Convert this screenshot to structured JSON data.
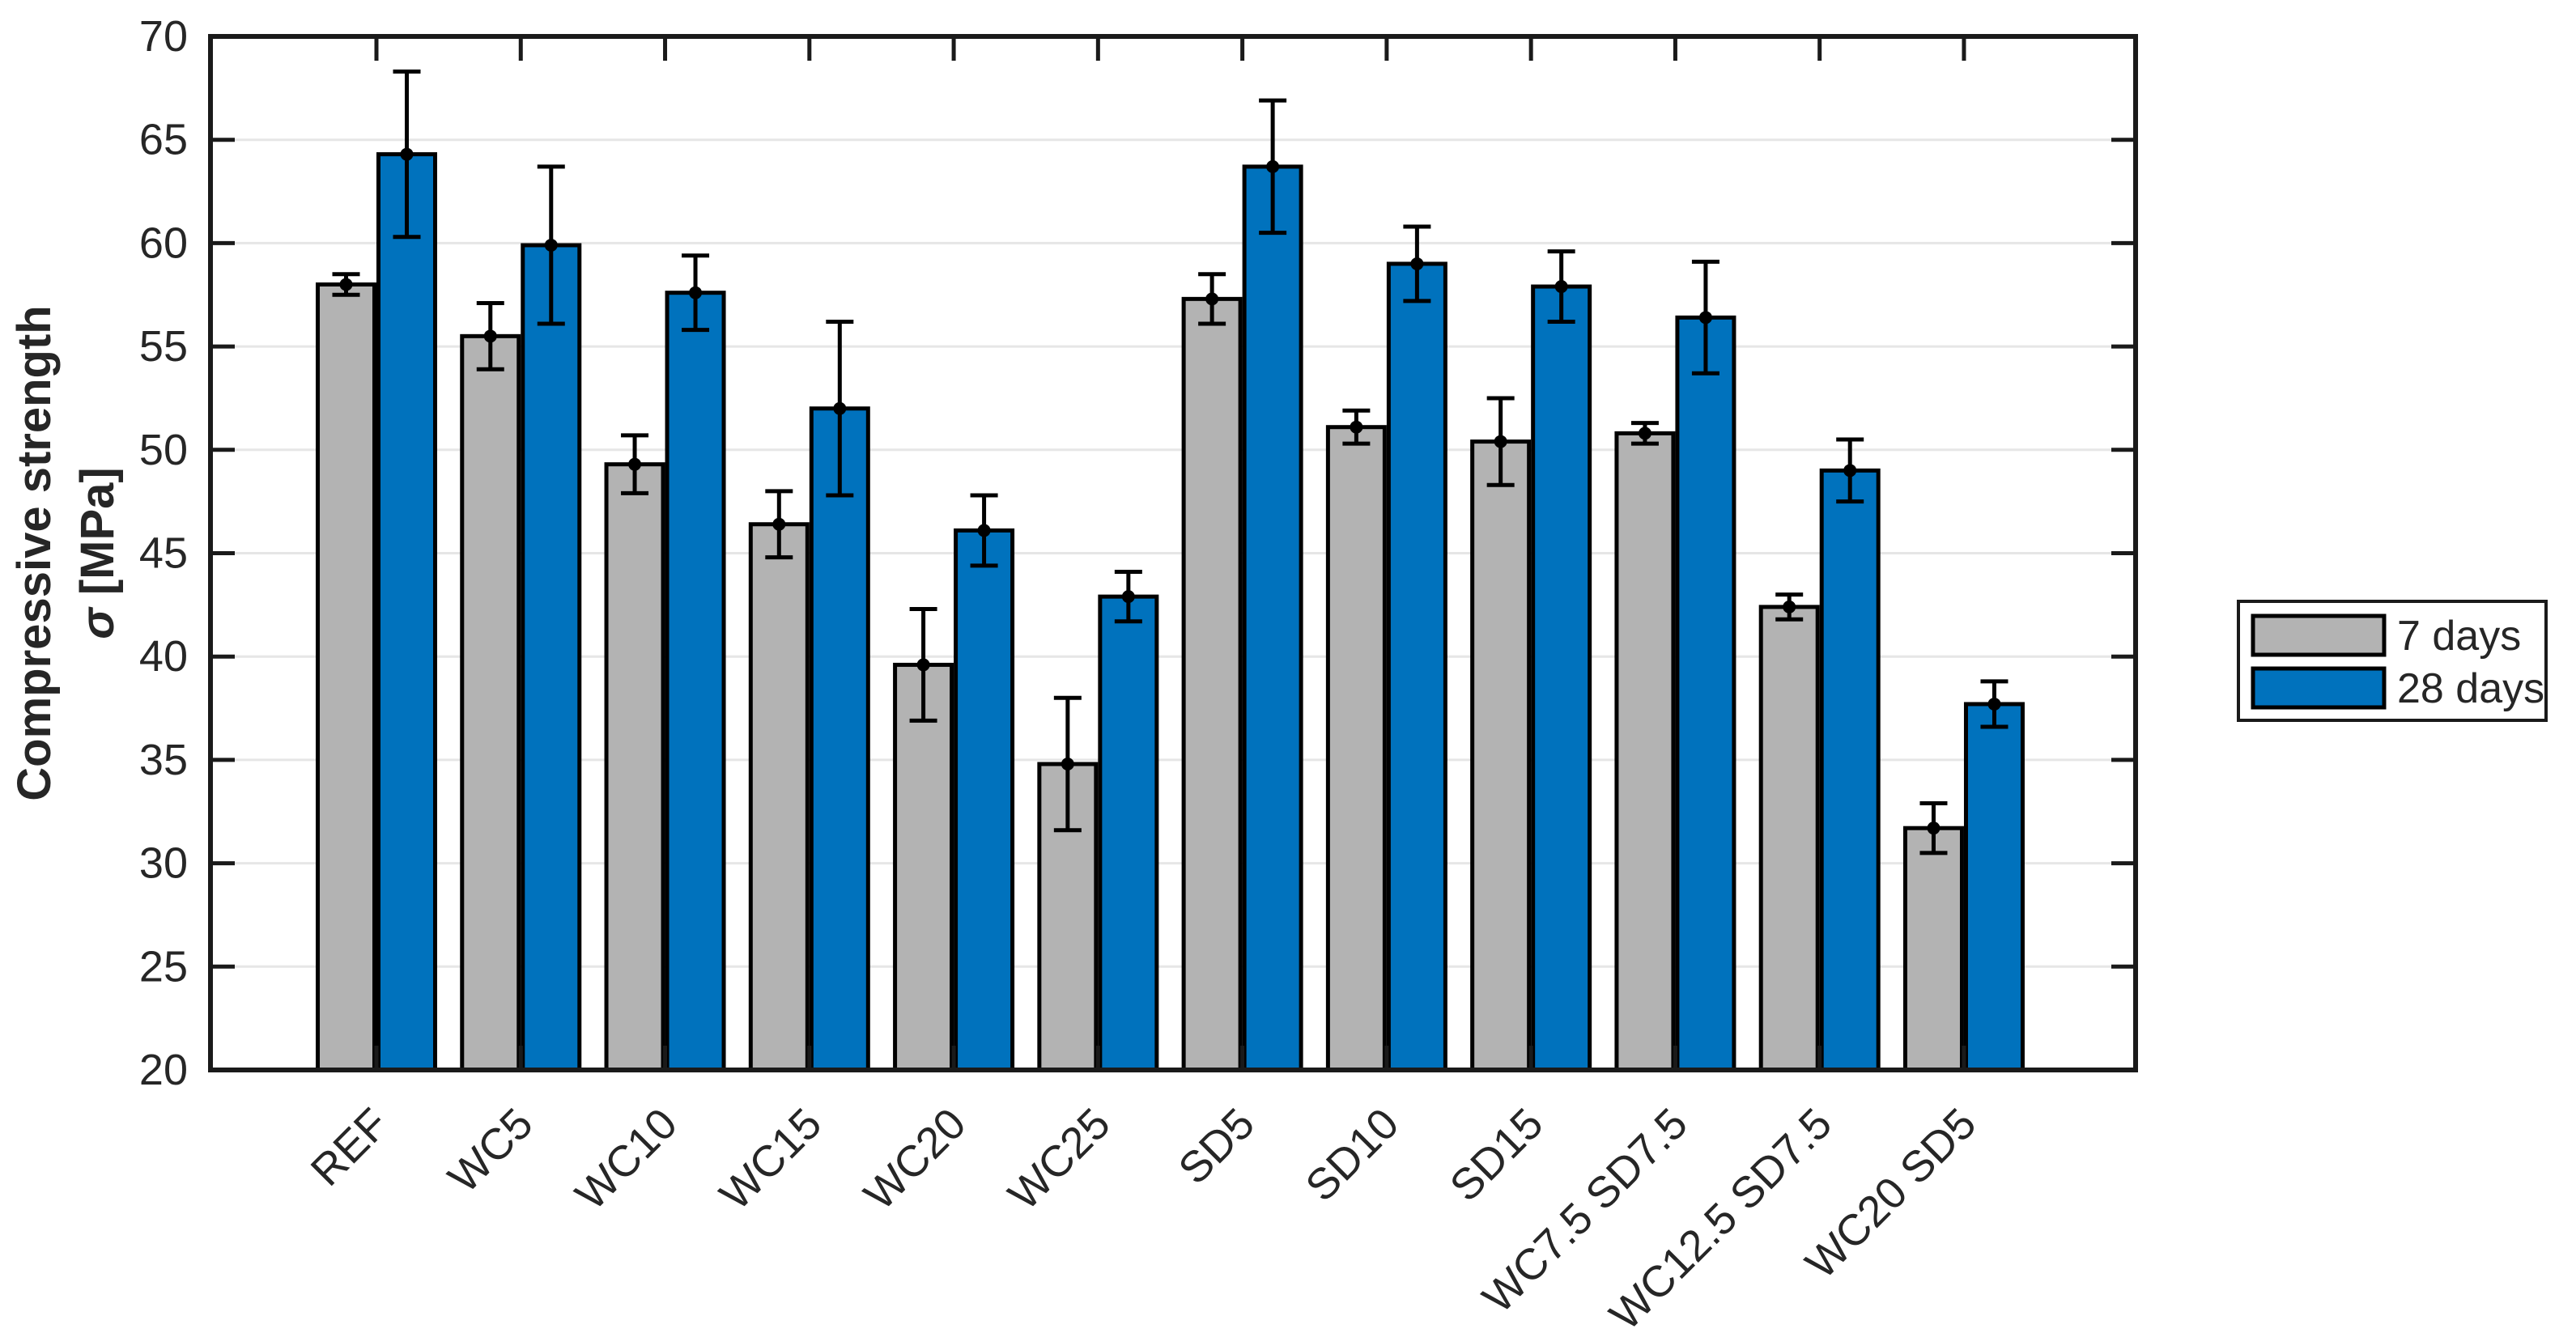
{
  "chart_data": {
    "type": "bar",
    "title": "",
    "ylabel_line1": "Compressive strength",
    "ylabel_sigma": "σ",
    "ylabel_unit": " [MPa]",
    "ylim": [
      20,
      70
    ],
    "ytick_step": 5,
    "ytick_labels": [
      "20",
      "25",
      "30",
      "35",
      "40",
      "45",
      "50",
      "55",
      "60",
      "65",
      "70"
    ],
    "grid": "horizontal",
    "legend_position": "right-outside",
    "categories": [
      "REF",
      "WC5",
      "WC10",
      "WC15",
      "WC20",
      "WC25",
      "SD5",
      "SD10",
      "SD15",
      "WC7.5 SD7.5",
      "WC12.5 SD7.5",
      "WC20 SD5"
    ],
    "series": [
      {
        "name": "7 days",
        "color": "#B3B3B3",
        "values": [
          58.0,
          55.5,
          49.3,
          46.4,
          39.6,
          34.8,
          57.3,
          51.1,
          50.4,
          50.8,
          42.4,
          31.7
        ],
        "errors": [
          0.5,
          1.6,
          1.4,
          1.6,
          2.7,
          3.2,
          1.2,
          0.8,
          2.1,
          0.5,
          0.6,
          1.2
        ]
      },
      {
        "name": "28 days",
        "color": "#0072BD",
        "values": [
          64.3,
          59.9,
          57.6,
          52.0,
          46.1,
          42.9,
          63.7,
          59.0,
          57.9,
          56.4,
          49.0,
          37.7
        ],
        "errors": [
          4.0,
          3.8,
          1.8,
          4.2,
          1.7,
          1.2,
          3.2,
          1.8,
          1.7,
          2.7,
          1.5,
          1.1
        ]
      }
    ],
    "colors": {
      "axis": "#1a1a1a",
      "text": "#262626",
      "grid": "#E6E6E6",
      "bar_edge": "#000000",
      "error_bar": "#000000",
      "background": "#FFFFFF"
    }
  }
}
